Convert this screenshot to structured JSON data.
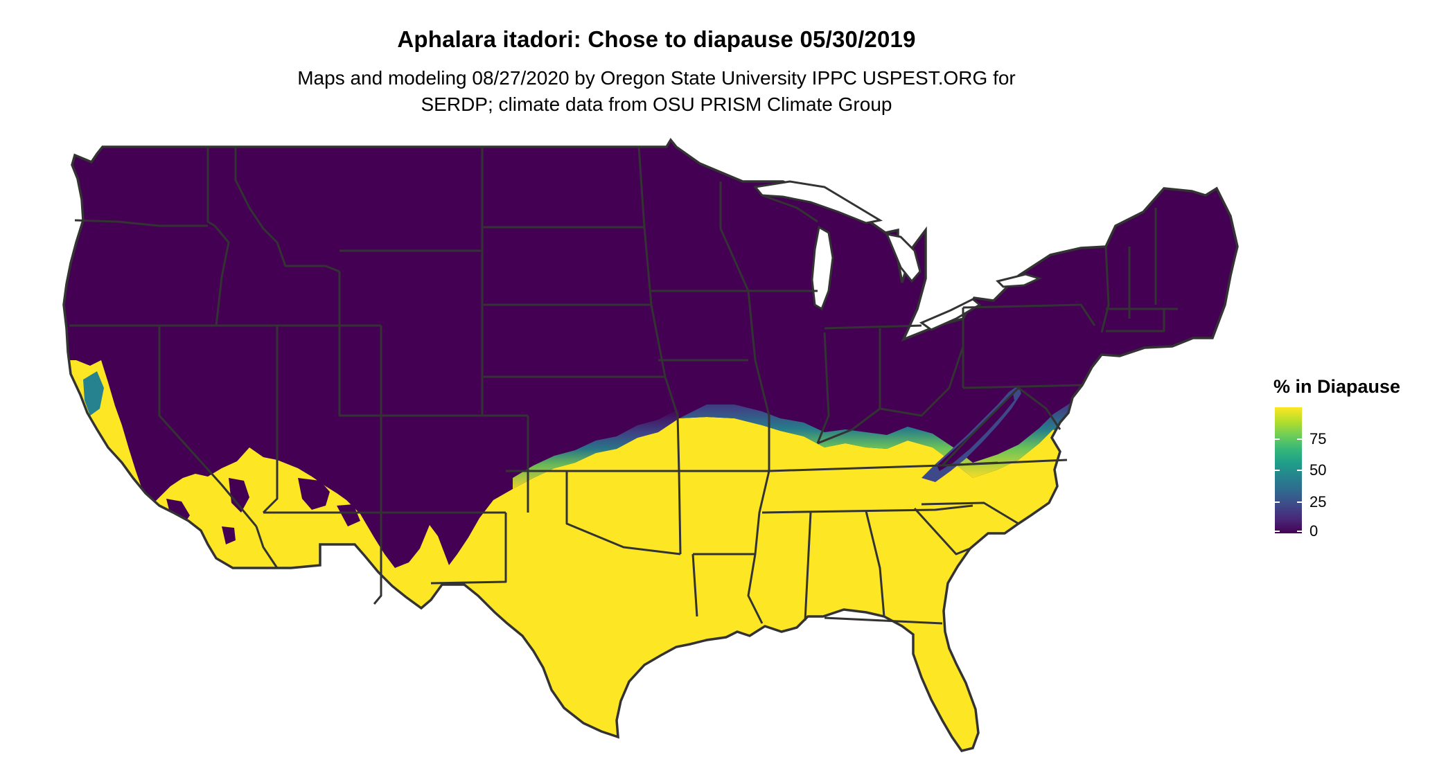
{
  "map": {
    "title": "Aphalara itadori: Chose to diapause 05/30/2019",
    "subtitle_line1": "Maps and modeling 08/27/2020 by Oregon State University IPPC USPEST.ORG for",
    "subtitle_line2": "SERDP; climate data from OSU PRISM Climate Group",
    "region": "contiguous-united-states",
    "low_color": "#440154",
    "high_color": "#FDE725",
    "border_color": "#333333"
  },
  "legend": {
    "title": "% in Diapause",
    "ticks": [
      "75",
      "50",
      "25",
      "0"
    ],
    "tick_values": [
      75,
      50,
      25,
      0
    ],
    "value_max": 100,
    "gradient_colors": [
      "#FDE725",
      "#B5DE2B",
      "#6ECE58",
      "#35B779",
      "#1F9E89",
      "#26828E",
      "#31688E",
      "#3E4989",
      "#482878",
      "#440154"
    ]
  }
}
